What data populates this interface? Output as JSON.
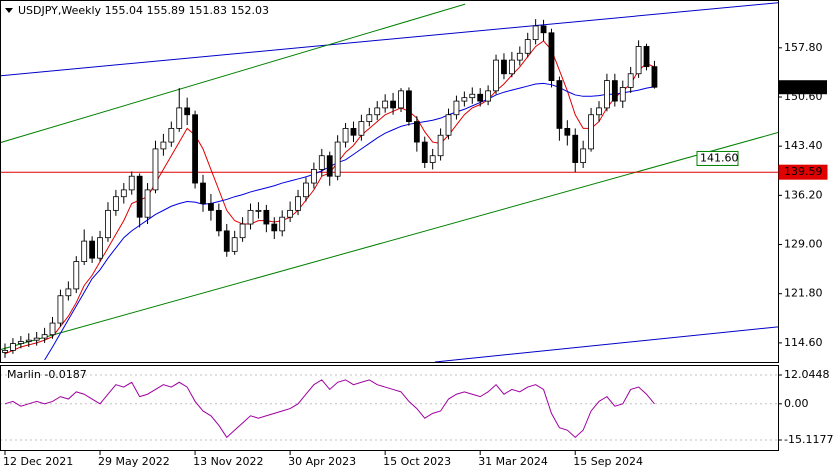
{
  "chart_data": [
    {
      "type": "candlestick",
      "title": "USDJPY,Weekly",
      "categories": [
        "12 Dec 2021",
        null,
        null,
        null,
        null,
        null,
        null,
        null,
        null,
        null,
        null,
        null,
        "29 May 2022",
        null,
        null,
        null,
        null,
        null,
        null,
        null,
        null,
        null,
        null,
        null,
        "13 Nov 2022",
        null,
        null,
        null,
        null,
        null,
        null,
        null,
        null,
        null,
        null,
        null,
        "30 Apr 2023",
        null,
        null,
        null,
        null,
        null,
        null,
        null,
        null,
        null,
        null,
        null,
        "15 Oct 2023",
        null,
        null,
        null,
        null,
        null,
        null,
        null,
        null,
        null,
        null,
        null,
        "31 Mar 2024",
        null,
        null,
        null,
        null,
        null,
        null,
        null,
        null,
        null,
        null,
        null,
        "15 Sep 2024",
        null,
        null,
        null,
        null,
        null,
        null,
        null,
        null,
        null,
        null
      ],
      "open": [
        113.2,
        113.5,
        114.5,
        114.8,
        115.0,
        115.3,
        115.8,
        117.5,
        121.5,
        122.5,
        126.5,
        129.5,
        127,
        130,
        134,
        136,
        137,
        139,
        133,
        137,
        143,
        144,
        146,
        149,
        148,
        138,
        135,
        134,
        131,
        128,
        130,
        132,
        134,
        134,
        132,
        131,
        133,
        134,
        136,
        138,
        140,
        142,
        139,
        144,
        146,
        145,
        147,
        148,
        149,
        150,
        149,
        151.5,
        147,
        144,
        141,
        142,
        145,
        148,
        150,
        150.5,
        151,
        150,
        151.5,
        156,
        154,
        156,
        157,
        159,
        161,
        160,
        153,
        146,
        145,
        141,
        143,
        148,
        149,
        153,
        150,
        152,
        154,
        158,
        155.04
      ],
      "high": [
        114.5,
        115.3,
        115.6,
        116.0,
        116.2,
        116.8,
        118.4,
        122.4,
        123.6,
        127.3,
        131.2,
        130.2,
        131.0,
        135.2,
        137.0,
        138.0,
        139.7,
        139.4,
        138.0,
        144.2,
        145.2,
        147.0,
        151.9,
        150.5,
        148.6,
        139.2,
        136.4,
        135.0,
        132.0,
        131.0,
        133.0,
        135.0,
        135.2,
        134.8,
        133.0,
        134.0,
        135.3,
        137.0,
        138.8,
        141.0,
        143.0,
        142.6,
        145.0,
        146.8,
        147.0,
        148.0,
        149.0,
        150.0,
        151.0,
        151.2,
        151.9,
        152.0,
        147.8,
        144.8,
        143.0,
        146.0,
        148.9,
        150.8,
        151.4,
        152.0,
        151.9,
        152.3,
        156.8,
        157.0,
        157.2,
        158.0,
        160.0,
        162.0,
        161.9,
        160.6,
        153.6,
        147.2,
        146.0,
        144.2,
        149.0,
        150.0,
        154.0,
        154.0,
        153.0,
        155.0,
        158.9,
        158.4,
        155.89
      ],
      "low": [
        112.4,
        113.0,
        113.8,
        114.0,
        114.2,
        114.6,
        115.2,
        117.0,
        120.8,
        121.9,
        126.0,
        126.3,
        126.5,
        129.4,
        133.2,
        135.0,
        136.3,
        131.5,
        132.0,
        136.5,
        142.0,
        143.3,
        145.5,
        146.5,
        137.2,
        133.8,
        132.5,
        130.2,
        127.2,
        127.5,
        129.4,
        131.2,
        132.8,
        130.8,
        129.8,
        130.2,
        132.3,
        133.3,
        135.3,
        137.2,
        139.0,
        137.6,
        138.4,
        143.2,
        144.0,
        144.2,
        146.3,
        147.2,
        148.3,
        148.0,
        148.4,
        146.4,
        142.6,
        140.2,
        140.0,
        141.3,
        144.4,
        147.3,
        149.2,
        149.6,
        149.2,
        149.4,
        151.0,
        153.2,
        153.5,
        155.2,
        156.4,
        158.3,
        158.8,
        152.0,
        144.2,
        143.5,
        139.6,
        140.2,
        142.6,
        147.0,
        148.5,
        149.2,
        149.0,
        151.2,
        153.4,
        154.5,
        151.83
      ],
      "close": [
        113.5,
        114.5,
        114.8,
        115.0,
        115.3,
        115.8,
        117.5,
        121.5,
        122.5,
        126.5,
        129.5,
        127,
        130,
        134,
        136,
        137,
        139,
        133,
        137,
        143,
        144,
        146,
        149,
        148,
        138,
        135,
        134,
        131,
        128,
        130,
        132,
        134,
        134,
        132,
        131,
        133,
        134,
        136,
        138,
        140,
        142,
        139,
        144,
        146,
        145,
        147,
        148,
        149,
        150,
        149,
        151.5,
        147,
        144,
        141,
        142,
        145,
        148,
        150,
        150.5,
        151,
        150,
        151.5,
        156,
        154,
        156,
        157,
        159,
        161,
        160,
        153,
        146,
        145,
        141,
        143,
        148,
        149,
        153,
        150,
        152,
        154,
        158,
        155.04,
        152.03
      ],
      "up_color": "#ffffff",
      "down_color": "#000000",
      "outline_color": "#000000",
      "overlays": [
        {
          "color": "#e00000",
          "values": [
            113,
            113.5,
            114,
            114.3,
            114.6,
            115,
            115.5,
            117,
            118.5,
            120.5,
            123,
            124.5,
            126.5,
            128.5,
            130.5,
            132.5,
            135,
            135.5,
            136,
            138,
            140,
            142,
            144,
            146,
            145,
            143,
            140,
            137,
            134,
            132.5,
            132,
            132,
            132.5,
            132.5,
            132.3,
            132.5,
            133,
            134,
            135.5,
            137,
            139,
            139.5,
            141,
            142.5,
            143.5,
            145,
            146,
            147,
            148,
            148.5,
            149,
            148.5,
            147.5,
            145.5,
            144,
            143.8,
            145,
            146.5,
            148,
            149,
            149.5,
            150.2,
            151.5,
            152.5,
            153.8,
            155,
            156.5,
            158,
            158.8,
            157.5,
            154.5,
            151.5,
            148,
            146,
            146,
            147,
            149,
            150.5,
            151.5,
            152.5,
            154.5,
            155.5,
            155
          ]
        },
        {
          "color": "#0000e0",
          "values": [
            null,
            null,
            null,
            null,
            null,
            112.1,
            114,
            116,
            118,
            120,
            122,
            124,
            125.3,
            127,
            128.5,
            130,
            131,
            131.8,
            132.6,
            133.4,
            134,
            134.6,
            135,
            135.3,
            135.2,
            134.9,
            135,
            135.3,
            135.6,
            136,
            136.3,
            136.7,
            137,
            137.3,
            137.6,
            138,
            138.3,
            138.6,
            138.9,
            139.3,
            139.8,
            140.4,
            141,
            141.4,
            142.2,
            143,
            143.8,
            144.6,
            145.3,
            145.8,
            146.3,
            146.6,
            146.8,
            147,
            147.2,
            147.5,
            148,
            148.4,
            148.8,
            149.3,
            149.8,
            150.3,
            150.9,
            151.3,
            151.6,
            151.9,
            152.2,
            152.5,
            152.6,
            152.4,
            152,
            151.4,
            150.9,
            150.7,
            150.7,
            150.8,
            151,
            151,
            151.2,
            151.4,
            151.6,
            151.9,
            152.1
          ]
        }
      ],
      "trendlines": [
        {
          "color": "#0000c8",
          "x": [
            -0.63,
            97.6
          ],
          "y": [
            153.7,
            164.4
          ]
        },
        {
          "color": "#0000c8",
          "x": [
            54.3,
            97.6
          ],
          "y": [
            111.8,
            116.95
          ]
        },
        {
          "color": "#008000",
          "x": [
            -0.63,
            58.1
          ],
          "y": [
            143.9,
            164.2
          ]
        },
        {
          "color": "#008000",
          "x": [
            -0.63,
            97.6
          ],
          "y": [
            113.6,
            145.4
          ]
        }
      ],
      "levels": [
        {
          "value": 139.59,
          "color": "#e00000",
          "line": true
        },
        {
          "value": 141.6,
          "label": "141.60",
          "color": "#008000",
          "line": false
        }
      ],
      "ylim": [
        111.8,
        164.8
      ],
      "yticks": [
        {
          "value": 157.8,
          "label": "157.80"
        },
        {
          "value": 150.6,
          "label": "150.60"
        },
        {
          "value": 143.4,
          "label": "143.40"
        },
        {
          "value": 136.2,
          "label": "136.20"
        },
        {
          "value": 129,
          "label": "129.00"
        },
        {
          "value": 121.8,
          "label": "121.80"
        },
        {
          "value": 114.6,
          "label": "114.60"
        }
      ]
    },
    {
      "type": "line",
      "series": [
        {
          "name": "Marlin",
          "color": "#a000a0",
          "values": [
            0,
            1,
            -1,
            0,
            1,
            0,
            1,
            3,
            2,
            5,
            4,
            2,
            0,
            4,
            8,
            7,
            9,
            3,
            4,
            6,
            8,
            7,
            9,
            7,
            1,
            -3,
            -5,
            -9,
            -14,
            -11,
            -8,
            -5,
            -6,
            -5,
            -4,
            -3,
            -2,
            0,
            4,
            8,
            10,
            6,
            9,
            10,
            8,
            9,
            10,
            8,
            7,
            6,
            5,
            1,
            -2,
            -6,
            -4,
            -3,
            2,
            4,
            5,
            4,
            3,
            5,
            8,
            4,
            6,
            5,
            7,
            8,
            6,
            -4,
            -10,
            -11,
            -14,
            -11,
            -3,
            1,
            3,
            -1,
            0,
            6,
            7,
            4,
            -0.0187
          ]
        }
      ],
      "ylim": [
        -19.3,
        15.8
      ],
      "yticks": [
        12.0448,
        {
          "value": 0,
          "label": "0.00"
        },
        -15.1177
      ]
    }
  ]
}
